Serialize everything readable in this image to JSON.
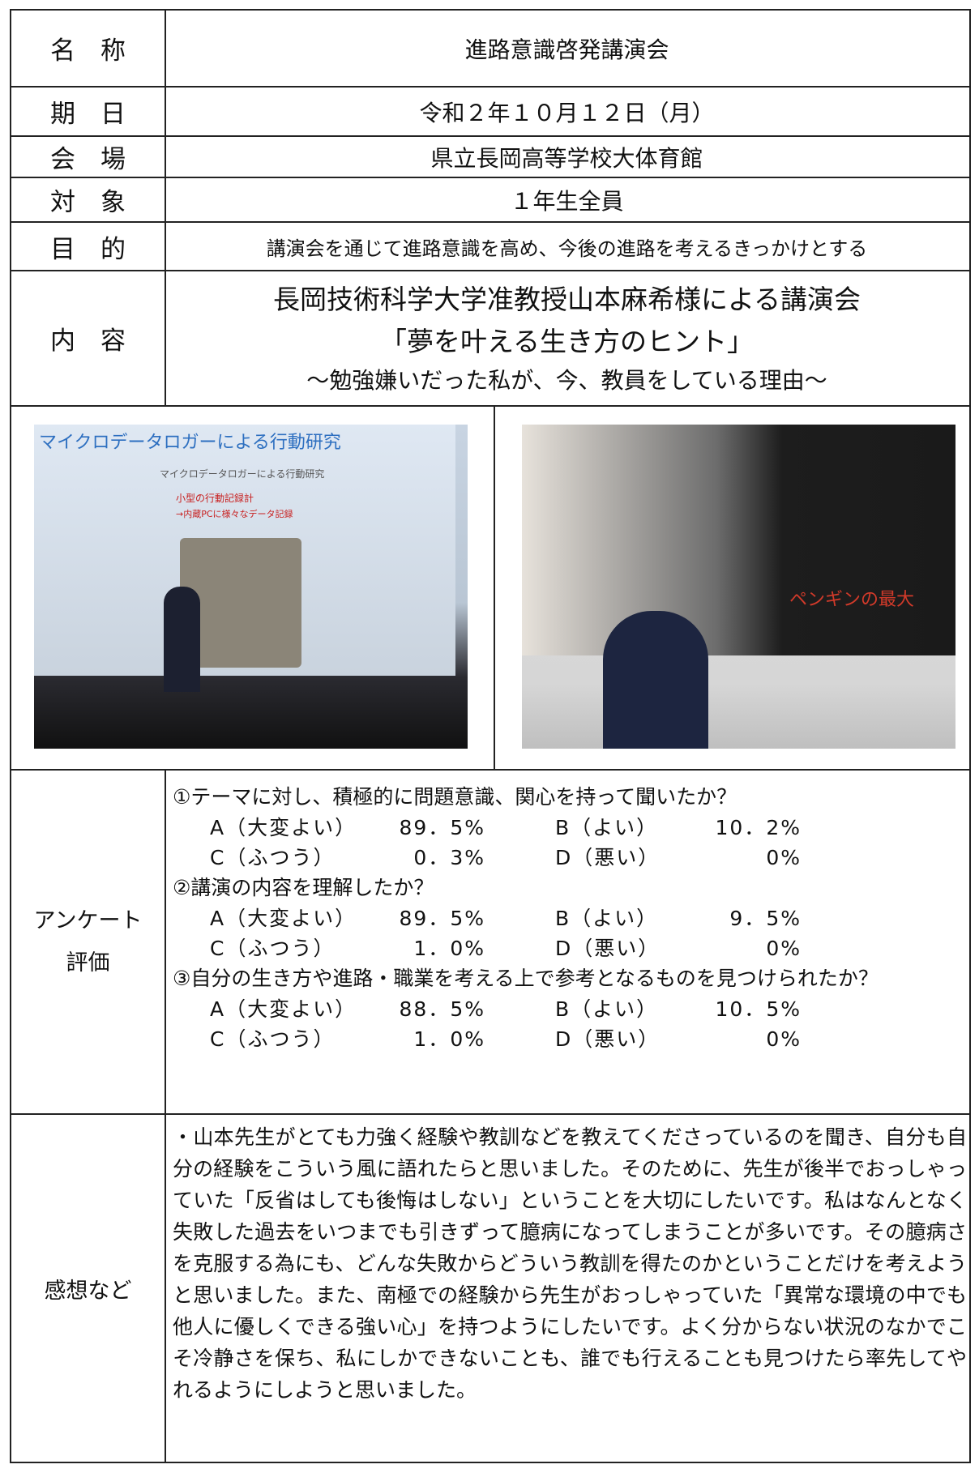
{
  "rows": [
    {
      "label": "名　称",
      "content": "進路意識啓発講演会"
    },
    {
      "label": "期　日",
      "content": "令和２年１０月１２日（月）"
    },
    {
      "label": "会　場",
      "content": "県立長岡高等学校大体育館"
    },
    {
      "label": "対　象",
      "content": "１年生全員"
    },
    {
      "label": "目　的",
      "content": "講演会を通じて進路意識を高め、今後の進路を考えるきっかけとする"
    }
  ],
  "content": {
    "label": "内　容",
    "lines": [
      "長岡技術科学大学准教授山本麻希様による講演会",
      "「夢を叶える生き方のヒント」",
      "～勉強嫌いだった私が、今、教員をしている理由～"
    ]
  },
  "photos": [
    {
      "texts": [
        "マイクロデータロガーによる行動研究",
        "マイクロデータロガーによる行動研究",
        "小型の行動記録計",
        "→内蔵PCに様々なデータ記録"
      ]
    },
    {
      "texts": [
        "ペンギンの最大"
      ]
    }
  ],
  "survey": {
    "label": [
      "アンケート",
      "評価"
    ],
    "questions": [
      {
        "text": "①テーマに対し、積極的に問題意識、関心を持って聞いたか？",
        "answers": [
          {
            "grade": "A（大変よい）",
            "value": "89．5%"
          },
          {
            "grade": "B（よい）",
            "value": "10．2%"
          },
          {
            "grade": "C（ふつう）",
            "value": "0．3%"
          },
          {
            "grade": "D（悪い）",
            "value": "0%"
          }
        ]
      },
      {
        "text": "②講演の内容を理解したか？",
        "answers": [
          {
            "grade": "A（大変よい）",
            "value": "89．5%"
          },
          {
            "grade": "B（よい）",
            "value": "9．5%"
          },
          {
            "grade": "C（ふつう）",
            "value": "1．0%"
          },
          {
            "grade": "D（悪い）",
            "value": "0%"
          }
        ]
      },
      {
        "text": "③自分の生き方や進路・職業を考える上で参考となるものを見つけられたか？",
        "answers": [
          {
            "grade": "A（大変よい）",
            "value": "88．5%"
          },
          {
            "grade": "B（よい）",
            "value": "10．5%"
          },
          {
            "grade": "C（ふつう）",
            "value": "1．0%"
          },
          {
            "grade": "D（悪い）",
            "value": "0%"
          }
        ]
      }
    ]
  },
  "impressions": {
    "label": "感想など",
    "text": "・山本先生がとても力強く経験や教訓などを教えてくださっているのを聞き、自分も自分の経験をこういう風に語れたらと思いました。そのために、先生が後半でおっしゃっていた「反省はしても後悔はしない」ということを大切にしたいです。私はなんとなく失敗した過去をいつまでも引きずって臆病になってしまうことが多いです。その臆病さを克服する為にも、どんな失敗からどういう教訓を得たのかということだけを考えようと思いました。また、南極での経験から先生がおっしゃっていた「異常な環境の中でも他人に優しくできる強い心」を持つようにしたいです。よく分からない状況のなかでこそ冷静さを保ち、私にしかできないことも、誰でも行えることも見つけたら率先してやれるようにしようと思いました。"
  }
}
